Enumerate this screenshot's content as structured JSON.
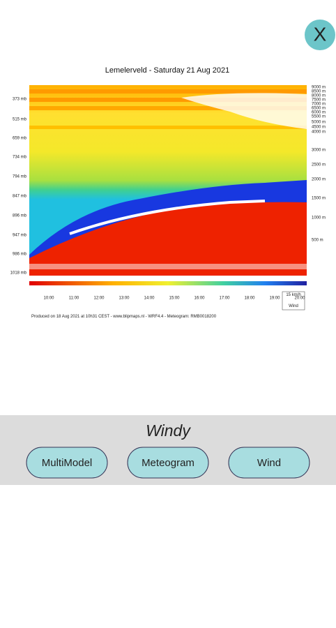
{
  "close_label": "X",
  "meteogram": {
    "title": "Lemelerveld - Saturday 21 Aug 2021",
    "pressure_levels": [
      "373 mb",
      "515 mb",
      "659 mb",
      "734 mb",
      "794 mb",
      "847 mb",
      "896 mb",
      "947 mb",
      "986 mb",
      "1018 mb"
    ],
    "altitudes": [
      "9000 m",
      "8500 m",
      "8000 m",
      "7500 m",
      "7000 m",
      "6500 m",
      "6000 m",
      "5500 m",
      "5000 m",
      "4500 m",
      "4000 m",
      "3000 m",
      "2500 m",
      "2000 m",
      "1500 m",
      "1000 m",
      "500 m"
    ],
    "times": [
      "10:00",
      "11:00",
      "12:00",
      "13:00",
      "14:00",
      "15:00",
      "16:00",
      "17:00",
      "18:00",
      "19:00",
      "20:00"
    ],
    "wind_box": "15 km/h",
    "wind_label": "Wind",
    "footer": "Produced on 18 Aug 2021 at 10h31 CEST - www.blipmaps.nl - WRF4.4 - Meteogram: RMB0018200"
  },
  "panel": {
    "title": "Windy",
    "buttons": [
      "MultiModel",
      "Meteogram",
      "Wind"
    ]
  }
}
